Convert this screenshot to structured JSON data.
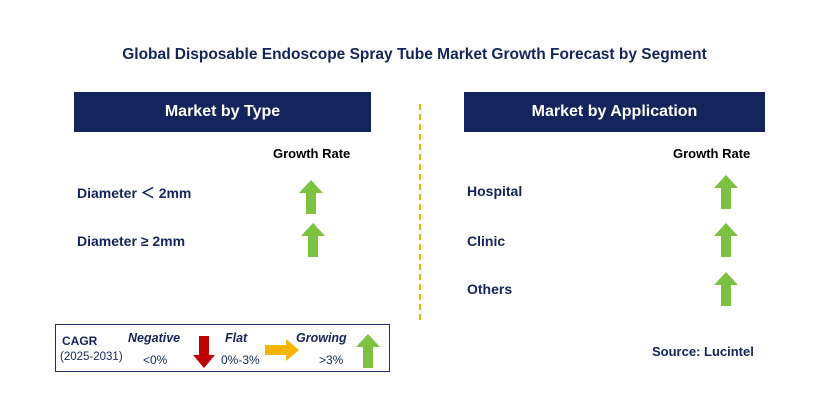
{
  "title": "Global Disposable Endoscope Spray Tube Market Growth Forecast by Segment",
  "left_panel": {
    "header": "Market by Type",
    "growth_label": "Growth Rate",
    "segments": [
      {
        "label": "Diameter ＜ 2mm",
        "trend": "growing"
      },
      {
        "label": "Diameter ≥ 2mm",
        "trend": "growing"
      }
    ]
  },
  "right_panel": {
    "header": "Market by Application",
    "growth_label": "Growth Rate",
    "segments": [
      {
        "label": "Hospital",
        "trend": "growing"
      },
      {
        "label": "Clinic",
        "trend": "growing"
      },
      {
        "label": "Others",
        "trend": "growing"
      }
    ]
  },
  "legend": {
    "cagr_label": "CAGR",
    "period": "(2025-2031)",
    "negative_label": "Negative",
    "negative_range": "<0%",
    "flat_label": "Flat",
    "flat_range": "0%-3%",
    "growing_label": "Growing",
    "growing_range": ">3%"
  },
  "source": "Source: Lucintel",
  "colors": {
    "header_bg": "#14245c",
    "growing_arrow": "#7dc142",
    "negative_arrow": "#c00000",
    "flat_arrow": "#f5b400",
    "divider": "#f5b400"
  }
}
